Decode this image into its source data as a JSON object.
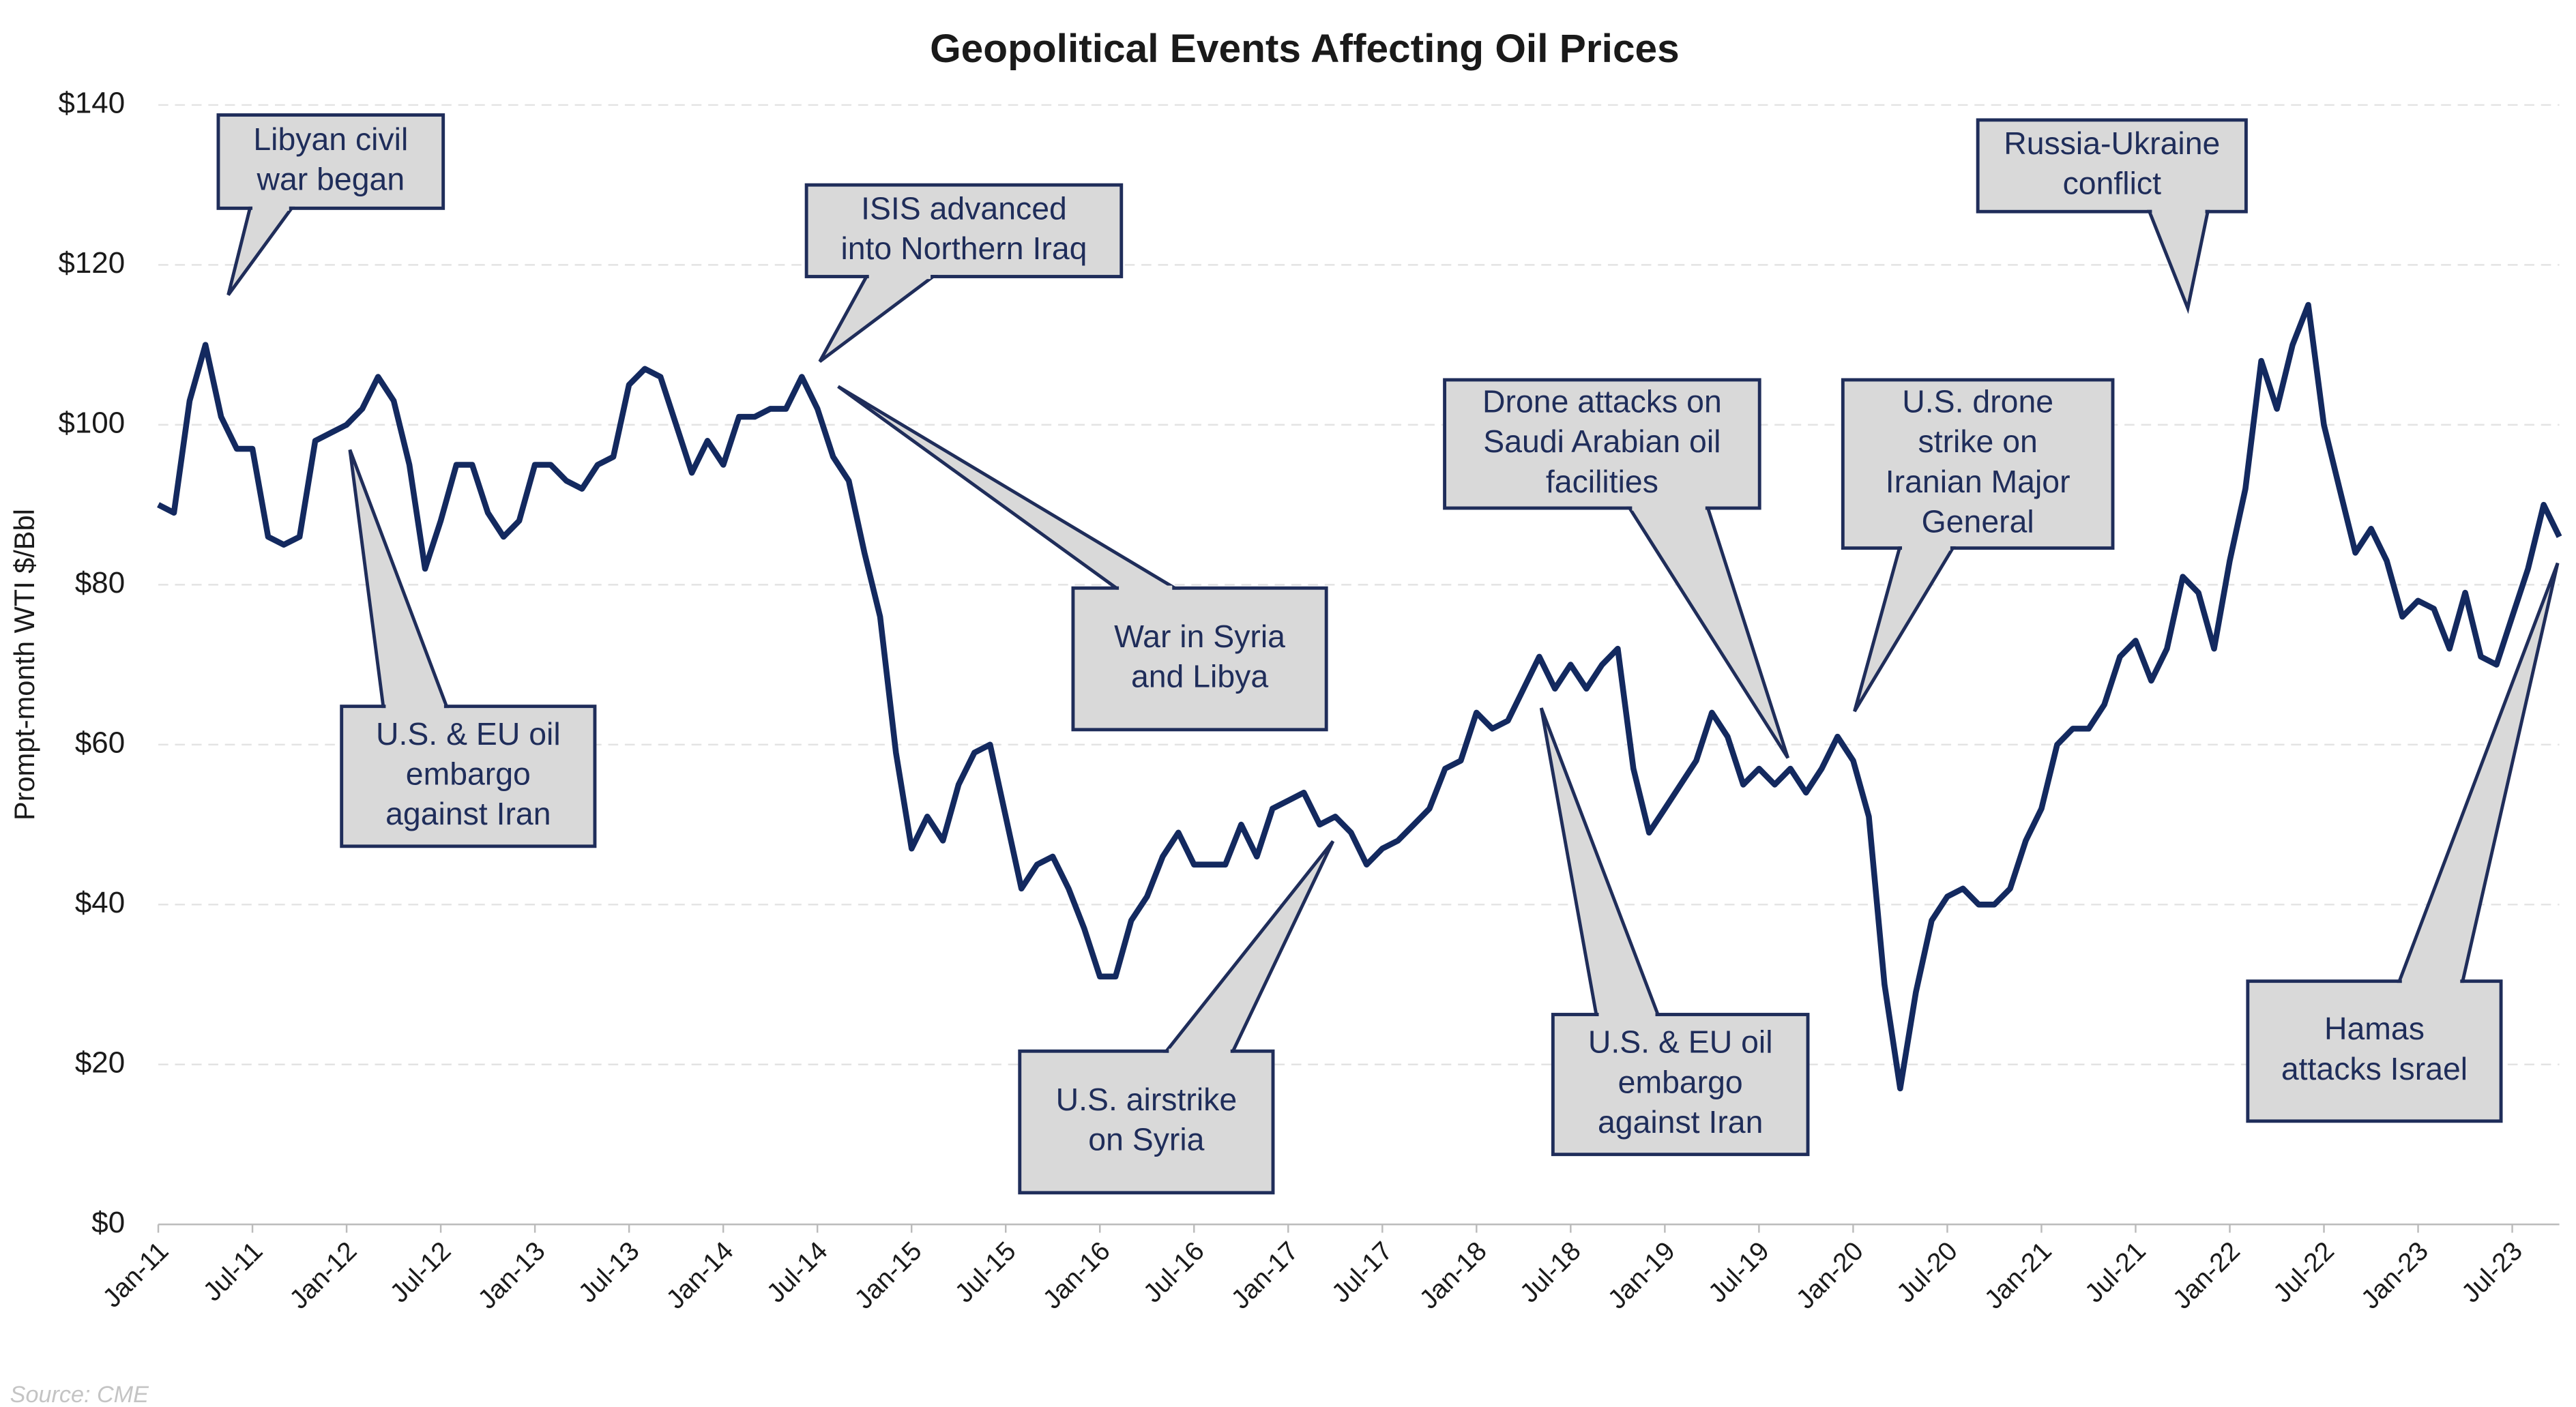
{
  "chart_data": {
    "type": "line",
    "title": "Geopolitical Events Affecting Oil Prices",
    "y_label": "Prompt-month WTI $/Bbl",
    "source": "Source: CME",
    "color": "#13295f",
    "grid": true,
    "categories": [
      "Jan-11",
      null,
      null,
      null,
      null,
      null,
      "Jul-11",
      null,
      null,
      null,
      null,
      null,
      "Jan-12",
      null,
      null,
      null,
      null,
      null,
      "Jul-12",
      null,
      null,
      null,
      null,
      null,
      "Jan-13",
      null,
      null,
      null,
      null,
      null,
      "Jul-13",
      null,
      null,
      null,
      null,
      null,
      "Jan-14",
      null,
      null,
      null,
      null,
      null,
      "Jul-14",
      null,
      null,
      null,
      null,
      null,
      "Jan-15",
      null,
      null,
      null,
      null,
      null,
      "Jul-15",
      null,
      null,
      null,
      null,
      null,
      "Jan-16",
      null,
      null,
      null,
      null,
      null,
      "Jul-16",
      null,
      null,
      null,
      null,
      null,
      "Jan-17",
      null,
      null,
      null,
      null,
      null,
      "Jul-17",
      null,
      null,
      null,
      null,
      null,
      "Jan-18",
      null,
      null,
      null,
      null,
      null,
      "Jul-18",
      null,
      null,
      null,
      null,
      null,
      "Jan-19",
      null,
      null,
      null,
      null,
      null,
      "Jul-19",
      null,
      null,
      null,
      null,
      null,
      "Jan-20",
      null,
      null,
      null,
      null,
      null,
      "Jul-20",
      null,
      null,
      null,
      null,
      null,
      "Jan-21",
      null,
      null,
      null,
      null,
      null,
      "Jul-21",
      null,
      null,
      null,
      null,
      null,
      "Jan-22",
      null,
      null,
      null,
      null,
      null,
      "Jul-22",
      null,
      null,
      null,
      null,
      null,
      "Jan-23",
      null,
      null,
      null,
      null,
      null,
      "Jul-23",
      null,
      null,
      null
    ],
    "values": [
      90,
      89,
      103,
      110,
      101,
      97,
      97,
      86,
      85,
      86,
      98,
      99,
      100,
      102,
      106,
      103,
      95,
      82,
      88,
      95,
      95,
      89,
      86,
      88,
      95,
      95,
      93,
      92,
      95,
      96,
      105,
      107,
      106,
      100,
      94,
      98,
      95,
      101,
      101,
      102,
      102,
      106,
      102,
      96,
      93,
      84,
      76,
      59,
      47,
      51,
      48,
      55,
      59,
      60,
      51,
      42,
      45,
      46,
      42,
      37,
      31,
      31,
      38,
      41,
      46,
      49,
      45,
      45,
      45,
      50,
      46,
      52,
      53,
      54,
      50,
      51,
      49,
      45,
      47,
      48,
      50,
      52,
      57,
      58,
      64,
      62,
      63,
      67,
      71,
      67,
      70,
      67,
      70,
      72,
      57,
      49,
      52,
      55,
      58,
      64,
      61,
      55,
      57,
      55,
      57,
      54,
      57,
      61,
      58,
      51,
      30,
      17,
      29,
      38,
      41,
      42,
      40,
      40,
      42,
      48,
      52,
      60,
      62,
      62,
      65,
      71,
      73,
      68,
      72,
      81,
      79,
      72,
      83,
      92,
      108,
      102,
      110,
      115,
      100,
      92,
      84,
      87,
      83,
      76,
      78,
      77,
      72,
      79,
      71,
      70,
      76,
      82,
      90,
      86
    ],
    "ylim": [
      0,
      140
    ],
    "yticks": [
      {
        "value": 0,
        "label": "$0"
      },
      {
        "value": 20,
        "label": "$20"
      },
      {
        "value": 40,
        "label": "$40"
      },
      {
        "value": 60,
        "label": "$60"
      },
      {
        "value": 80,
        "label": "$80"
      },
      {
        "value": 100,
        "label": "$100"
      },
      {
        "value": 120,
        "label": "$120"
      },
      {
        "value": 140,
        "label": "$140"
      }
    ],
    "annotations": [
      {
        "lines": [
          "Libyan civil",
          "war began"
        ]
      },
      {
        "lines": [
          "ISIS advanced",
          "into Northern Iraq"
        ]
      },
      {
        "lines": [
          "Russia-Ukraine",
          "conflict"
        ]
      },
      {
        "lines": [
          "U.S. & EU oil",
          "embargo",
          "against Iran"
        ]
      },
      {
        "lines": [
          "War in Syria",
          "and Libya"
        ]
      },
      {
        "lines": [
          "Drone attacks on",
          "Saudi Arabian oil",
          "facilities"
        ]
      },
      {
        "lines": [
          "U.S. drone",
          "strike on",
          "Iranian Major",
          "General"
        ]
      },
      {
        "lines": [
          "U.S. airstrike",
          "on Syria"
        ]
      },
      {
        "lines": [
          "U.S. & EU oil",
          "embargo",
          "against Iran"
        ]
      },
      {
        "lines": [
          "Hamas",
          "attacks Israel"
        ]
      }
    ]
  }
}
